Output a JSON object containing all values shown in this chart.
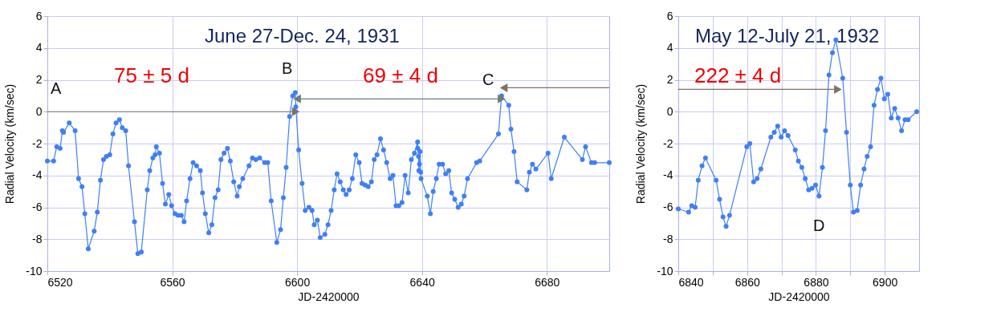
{
  "chart_data": [
    {
      "type": "line",
      "title": "June 27-Dec. 24, 1931",
      "xlabel": "JD-2420000",
      "ylabel": "Radial Velocity (km/sec)",
      "xlim": [
        6520,
        6700
      ],
      "xticks": [
        6520,
        6560,
        6600,
        6640,
        6680
      ],
      "ylim": [
        -10,
        6
      ],
      "yticks": [
        -10,
        -8,
        -6,
        -4,
        -2,
        0,
        2,
        4,
        6
      ],
      "grid": true,
      "annotations": [
        "A",
        "75 ± 5 d",
        "B",
        "69 ± 4 d",
        "C"
      ],
      "series": [
        {
          "color": "#3f7ff5",
          "marker": "circle",
          "x": [
            6520,
            6522,
            6523,
            6524.1,
            6524.8,
            6525.2,
            6527,
            6528.9,
            6530,
            6531.1,
            6532,
            6533.1,
            6535,
            6536,
            6537,
            6538,
            6538.9,
            6540,
            6541,
            6542,
            6543.1,
            6544,
            6545.1,
            6546,
            6547.9,
            6549,
            6550.1,
            6552,
            6552.8,
            6553.8,
            6554.5,
            6554.9,
            6555.9,
            6556.9,
            6557.8,
            6558.9,
            6559.8,
            6560.9,
            6561.9,
            6562.9,
            6563.8,
            6564.6,
            6565.7,
            6566.7,
            6567.8,
            6569,
            6569.7,
            6570.6,
            6571.7,
            6572.7,
            6573.7,
            6574.7,
            6575.6,
            6576.6,
            6577.7,
            6578.6,
            6579.7,
            6580.8,
            6581.5,
            6582.6,
            6584.6,
            6585.7,
            6586.8,
            6588,
            6589.6,
            6590.6,
            6591.7,
            6593.5,
            6594.7,
            6595.6,
            6596.5,
            6597.6,
            6598.6,
            6599.4,
            6599.6,
            6600.5,
            6601.6,
            6602.6,
            6603.8,
            6604.8,
            6605.5,
            6606.5,
            6607.4,
            6608.9,
            6609.9,
            6610.9,
            6611.9,
            6612.8,
            6613.8,
            6614.8,
            6615.7,
            6616.7,
            6617.7,
            6618.8,
            6619.9,
            6620.8,
            6621.8,
            6622.8,
            6623.8,
            6624.7,
            6625.6,
            6626.7,
            6627.7,
            6628.7,
            6629.8,
            6630.7,
            6631.7,
            6632.6,
            6633.6,
            6634.6,
            6635.6,
            6636.6,
            6637.6,
            6638.6,
            6638.7,
            6638.9,
            6639.0,
            6639.2,
            6639.4,
            6639.6,
            6639.7,
            6641.7,
            6642.7,
            6643.6,
            6644.6,
            6645.5,
            6646.6,
            6647.6,
            6648.6,
            6649.5,
            6650.5,
            6651.6,
            6652.6,
            6653.5,
            6654.6,
            6657.5,
            6658.5,
            6664.5,
            6665.5,
            6667.8,
            6668.5,
            6669.5,
            6670.5,
            6673.6,
            6674.4,
            6675.4,
            6676.5,
            6680.4,
            6681.4,
            6685.6,
            6691.4,
            6692.4,
            6694.3,
            6695.3,
            6700
          ],
          "values": [
            -3.1,
            -3.1,
            -2.2,
            -2.3,
            -1.2,
            -1.3,
            -0.7,
            -1.2,
            -4.2,
            -4.7,
            -6.4,
            -8.6,
            -7.5,
            -6.3,
            -4.3,
            -3.0,
            -2.8,
            -2.7,
            -1.4,
            -0.7,
            -0.5,
            -1.0,
            -1.2,
            -3.4,
            -6.9,
            -8.9,
            -8.8,
            -4.9,
            -3.7,
            -2.9,
            -2.7,
            -2.2,
            -2.6,
            -4.5,
            -5.8,
            -5.2,
            -5.9,
            -6.4,
            -6.5,
            -6.5,
            -6.9,
            -5.6,
            -4.2,
            -3.2,
            -3.4,
            -3.7,
            -5.1,
            -6.4,
            -7.6,
            -7.1,
            -5.4,
            -4.9,
            -3.0,
            -2.6,
            -2.3,
            -3.1,
            -4.4,
            -5.3,
            -4.7,
            -4.2,
            -3.4,
            -2.9,
            -3.0,
            -2.9,
            -3.2,
            -3.2,
            -5.6,
            -8.2,
            -7.4,
            -5.4,
            -3.5,
            -0.3,
            1.0,
            1.2,
            0.3,
            -2.4,
            -4.5,
            -6.2,
            -6.0,
            -6.2,
            -7.1,
            -6.8,
            -7.9,
            -7.7,
            -7.1,
            -6.2,
            -4.9,
            -3.9,
            -4.4,
            -4.9,
            -5.2,
            -4.9,
            -4.2,
            -2.7,
            -3.2,
            -4.5,
            -4.6,
            -4.7,
            -4.4,
            -3.0,
            -2.7,
            -1.7,
            -2.4,
            -3.2,
            -4.2,
            -4.0,
            -5.9,
            -5.9,
            -5.7,
            -4.0,
            -5.1,
            -3.0,
            -2.6,
            -1.9,
            -2.3,
            -2.8,
            -3.7,
            -3.3,
            -2.5,
            -3.8,
            -4.2,
            -5.3,
            -6.4,
            -5.0,
            -4.2,
            -3.3,
            -3.3,
            -3.9,
            -3.7,
            -5.1,
            -5.5,
            -6.0,
            -5.8,
            -5.3,
            -4.2,
            -3.2,
            -3.1,
            -1.4,
            1.0,
            0.4,
            -1.1,
            -2.5,
            -4.4,
            -4.9,
            -3.8,
            -3.3,
            -3.6,
            -2.6,
            -4.2,
            -1.6,
            -3.0,
            -2.2,
            -3.2,
            -3.2,
            -3.2
          ]
        },
        {
          "color": "#7f7068",
          "marker": "triangle",
          "x": [
            6520,
            6599.6
          ],
          "values": [
            0,
            0
          ]
        },
        {
          "color": "#6a7e7a",
          "marker": "triangle",
          "x": [
            6600,
            6665.5
          ],
          "values": [
            0.8,
            0.8
          ]
        },
        {
          "color": "#7f7068",
          "marker": "triangle",
          "x": [
            6666.2,
            6700
          ],
          "values": [
            1.5,
            1.5
          ]
        }
      ]
    },
    {
      "type": "line",
      "title": "May 12-July 21, 1932",
      "xlabel": "JD-2420000",
      "ylabel": "Radial Velocity (km/sec)",
      "xlim": [
        6840,
        6910
      ],
      "xticks": [
        6840,
        {
          "value": 6850,
          "label": null
        },
        6860,
        {
          "value": 6870,
          "label": null
        },
        6880,
        {
          "value": 6890,
          "label": null
        },
        6900
      ],
      "ylim": [
        -10,
        6
      ],
      "yticks": [
        -10,
        -8,
        -6,
        -4,
        -2,
        0,
        2,
        4,
        6
      ],
      "grid": true,
      "annotations": [
        "222 ± 4 d",
        "D"
      ],
      "series": [
        {
          "color": "#3f7ff5",
          "marker": "circle",
          "x": [
            6840,
            6843.0,
            6843.9,
            6844.9,
            6845.8,
            6846.9,
            6847.9,
            6851.0,
            6852.0,
            6853.0,
            6853.9,
            6854.9,
            6859.9,
            6860.8,
            6861.9,
            6862.9,
            6864.0,
            6866.9,
            6867.9,
            6868.9,
            6869.9,
            6870.9,
            6871.9,
            6874.0,
            6874.9,
            6875.9,
            6876.9,
            6877.9,
            6878.9,
            6879.9,
            6880.9,
            6881.9,
            6882.8,
            6883.8,
            6884.8,
            6885.8,
            6887.8,
            6888.9,
            6890.0,
            6890.9,
            6892.0,
            6893.0,
            6894.0,
            6894.9,
            6895.9,
            6896.9,
            6897.9,
            6898.9,
            6899.9,
            6900.9,
            6901.9,
            6902.9,
            6903.9,
            6904.9,
            6905.9,
            6906.8,
            6909.3
          ],
          "values": [
            -6.1,
            -6.3,
            -5.9,
            -6.0,
            -4.3,
            -3.4,
            -2.9,
            -4.3,
            -5.5,
            -6.6,
            -7.2,
            -6.5,
            -2.2,
            -2.0,
            -4.4,
            -4.2,
            -3.6,
            -1.6,
            -1.3,
            -0.9,
            -1.6,
            -1.2,
            -1.5,
            -2.4,
            -3.1,
            -3.5,
            -4.2,
            -4.9,
            -4.8,
            -4.6,
            -5.3,
            -3.5,
            -1.2,
            2.3,
            3.7,
            4.5,
            2.1,
            -1.3,
            -4.6,
            -6.3,
            -6.2,
            -4.6,
            -3.6,
            -2.8,
            -2.2,
            0.4,
            1.4,
            2.1,
            0.8,
            1.1,
            -0.4,
            0.2,
            -0.4,
            -1.2,
            -0.5,
            -0.5,
            0.0
          ]
        },
        {
          "color": "#7f7068",
          "marker": "triangle",
          "x": [
            6840,
            6886.4
          ],
          "values": [
            1.4,
            1.4
          ]
        }
      ]
    }
  ]
}
